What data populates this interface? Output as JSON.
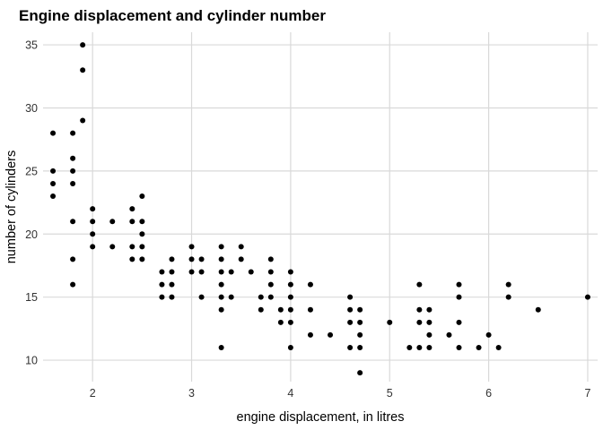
{
  "chart_data": {
    "type": "scatter",
    "title": "Engine displacement and cylinder number",
    "xlabel": "engine displacement, in litres",
    "ylabel": "number of cylinders",
    "xlim": [
      1.5,
      7.1
    ],
    "ylim": [
      8.3,
      36
    ],
    "x_ticks": [
      2,
      3,
      4,
      5,
      6,
      7
    ],
    "y_ticks": [
      10,
      15,
      20,
      25,
      30,
      35
    ],
    "grid": true,
    "point_color": "#000000",
    "points": [
      [
        1.6,
        28
      ],
      [
        1.6,
        25
      ],
      [
        1.6,
        24
      ],
      [
        1.6,
        23
      ],
      [
        1.8,
        28
      ],
      [
        1.8,
        26
      ],
      [
        1.8,
        25
      ],
      [
        1.8,
        24
      ],
      [
        1.8,
        21
      ],
      [
        1.8,
        18
      ],
      [
        1.8,
        16
      ],
      [
        1.9,
        35
      ],
      [
        1.9,
        33
      ],
      [
        1.9,
        29
      ],
      [
        2.0,
        22
      ],
      [
        2.0,
        21
      ],
      [
        2.0,
        20
      ],
      [
        2.0,
        19
      ],
      [
        2.2,
        21
      ],
      [
        2.2,
        19
      ],
      [
        2.4,
        22
      ],
      [
        2.4,
        21
      ],
      [
        2.4,
        19
      ],
      [
        2.4,
        18
      ],
      [
        2.5,
        23
      ],
      [
        2.5,
        21
      ],
      [
        2.5,
        20
      ],
      [
        2.5,
        19
      ],
      [
        2.5,
        18
      ],
      [
        2.7,
        17
      ],
      [
        2.7,
        16
      ],
      [
        2.7,
        15
      ],
      [
        2.8,
        18
      ],
      [
        2.8,
        17
      ],
      [
        2.8,
        16
      ],
      [
        2.8,
        15
      ],
      [
        3.0,
        19
      ],
      [
        3.0,
        18
      ],
      [
        3.0,
        17
      ],
      [
        3.1,
        18
      ],
      [
        3.1,
        17
      ],
      [
        3.1,
        15
      ],
      [
        3.3,
        19
      ],
      [
        3.3,
        18
      ],
      [
        3.3,
        17
      ],
      [
        3.3,
        16
      ],
      [
        3.3,
        15
      ],
      [
        3.3,
        14
      ],
      [
        3.3,
        11
      ],
      [
        3.4,
        17
      ],
      [
        3.4,
        15
      ],
      [
        3.5,
        19
      ],
      [
        3.5,
        18
      ],
      [
        3.6,
        17
      ],
      [
        3.7,
        15
      ],
      [
        3.7,
        14
      ],
      [
        3.8,
        18
      ],
      [
        3.8,
        17
      ],
      [
        3.8,
        16
      ],
      [
        3.8,
        15
      ],
      [
        3.9,
        14
      ],
      [
        3.9,
        13
      ],
      [
        4.0,
        17
      ],
      [
        4.0,
        16
      ],
      [
        4.0,
        15
      ],
      [
        4.0,
        14
      ],
      [
        4.0,
        13
      ],
      [
        4.0,
        11
      ],
      [
        4.2,
        16
      ],
      [
        4.2,
        14
      ],
      [
        4.2,
        12
      ],
      [
        4.4,
        12
      ],
      [
        4.6,
        15
      ],
      [
        4.6,
        14
      ],
      [
        4.6,
        13
      ],
      [
        4.6,
        11
      ],
      [
        4.7,
        14
      ],
      [
        4.7,
        13
      ],
      [
        4.7,
        12
      ],
      [
        4.7,
        11
      ],
      [
        4.7,
        9
      ],
      [
        5.0,
        13
      ],
      [
        5.2,
        11
      ],
      [
        5.3,
        16
      ],
      [
        5.3,
        14
      ],
      [
        5.3,
        13
      ],
      [
        5.3,
        11
      ],
      [
        5.4,
        14
      ],
      [
        5.4,
        13
      ],
      [
        5.4,
        12
      ],
      [
        5.4,
        11
      ],
      [
        5.6,
        12
      ],
      [
        5.7,
        16
      ],
      [
        5.7,
        15
      ],
      [
        5.7,
        13
      ],
      [
        5.7,
        11
      ],
      [
        5.9,
        11
      ],
      [
        6.0,
        12
      ],
      [
        6.1,
        11
      ],
      [
        6.2,
        16
      ],
      [
        6.2,
        15
      ],
      [
        6.5,
        14
      ],
      [
        7.0,
        15
      ]
    ]
  }
}
